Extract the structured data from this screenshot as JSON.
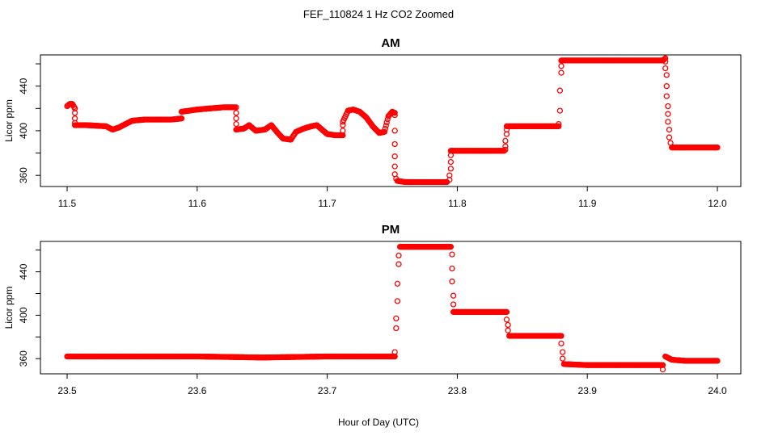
{
  "title": "FEF_110824  1 Hz CO2 Zoomed",
  "xlabel": "Hour of Day (UTC)",
  "colors": {
    "points": "#ff0000",
    "axes": "#000000",
    "background": "#ffffff"
  },
  "chart_data": [
    {
      "type": "scatter",
      "title": "AM",
      "ylabel": "Licor ppm",
      "xlim": [
        11.5,
        12.0
      ],
      "ylim": [
        350,
        468
      ],
      "xticks": [
        "11.5",
        "11.6",
        "11.7",
        "11.8",
        "11.9",
        "12.0"
      ],
      "yticks": [
        "360",
        "400",
        "440"
      ],
      "series_color": "#ff0000",
      "segments": [
        [
          [
            11.5,
            422
          ],
          [
            11.502,
            424
          ],
          [
            11.504,
            424
          ],
          [
            11.506,
            420
          ]
        ],
        [
          [
            11.506,
            405
          ],
          [
            11.515,
            405
          ],
          [
            11.53,
            404
          ],
          [
            11.535,
            401
          ],
          [
            11.54,
            403
          ],
          [
            11.545,
            406
          ],
          [
            11.55,
            409
          ],
          [
            11.56,
            410
          ],
          [
            11.57,
            410
          ],
          [
            11.58,
            410
          ],
          [
            11.588,
            411
          ]
        ],
        [
          [
            11.588,
            417
          ],
          [
            11.6,
            419
          ],
          [
            11.61,
            420
          ],
          [
            11.62,
            421
          ],
          [
            11.629,
            421
          ]
        ],
        [
          [
            11.63,
            401
          ],
          [
            11.636,
            402
          ],
          [
            11.64,
            405
          ],
          [
            11.645,
            400
          ],
          [
            11.652,
            401
          ],
          [
            11.657,
            405
          ],
          [
            11.662,
            398
          ],
          [
            11.666,
            393
          ],
          [
            11.672,
            392
          ],
          [
            11.676,
            399
          ],
          [
            11.682,
            402
          ],
          [
            11.688,
            404
          ],
          [
            11.692,
            405
          ],
          [
            11.696,
            401
          ],
          [
            11.7,
            397
          ],
          [
            11.706,
            396
          ],
          [
            11.712,
            396
          ]
        ],
        [
          [
            11.712,
            408
          ],
          [
            11.716,
            418
          ],
          [
            11.72,
            419
          ],
          [
            11.725,
            417
          ],
          [
            11.73,
            412
          ],
          [
            11.735,
            404
          ],
          [
            11.74,
            398
          ],
          [
            11.744,
            399
          ],
          [
            11.747,
            413
          ],
          [
            11.75,
            417
          ],
          [
            11.752,
            416
          ]
        ],
        [
          [
            11.754,
            355
          ],
          [
            11.76,
            354
          ],
          [
            11.77,
            354
          ],
          [
            11.78,
            354
          ],
          [
            11.792,
            354
          ]
        ],
        [
          [
            11.795,
            382
          ],
          [
            11.805,
            382
          ],
          [
            11.815,
            382
          ],
          [
            11.825,
            382
          ],
          [
            11.836,
            382
          ]
        ],
        [
          [
            11.838,
            404
          ],
          [
            11.85,
            404
          ],
          [
            11.86,
            404
          ],
          [
            11.87,
            404
          ],
          [
            11.878,
            404
          ]
        ],
        [
          [
            11.88,
            463
          ],
          [
            11.895,
            463
          ],
          [
            11.91,
            463
          ],
          [
            11.925,
            463
          ],
          [
            11.94,
            463
          ],
          [
            11.958,
            463
          ],
          [
            11.96,
            465
          ]
        ],
        [
          [
            11.965,
            385
          ],
          [
            11.975,
            385
          ],
          [
            11.985,
            385
          ],
          [
            12.0,
            385
          ]
        ]
      ],
      "transitions": [
        [
          [
            11.506,
            420
          ],
          [
            11.506,
            416
          ],
          [
            11.506,
            411
          ],
          [
            11.506,
            407
          ]
        ],
        [
          [
            11.63,
            421
          ],
          [
            11.63,
            416
          ],
          [
            11.63,
            411
          ],
          [
            11.63,
            406
          ]
        ],
        [
          [
            11.712,
            400
          ],
          [
            11.712,
            405
          ]
        ],
        [
          [
            11.752,
            414
          ],
          [
            11.752,
            400
          ],
          [
            11.752,
            388
          ],
          [
            11.752,
            377
          ],
          [
            11.752,
            368
          ],
          [
            11.752,
            361
          ],
          [
            11.753,
            357
          ]
        ],
        [
          [
            11.794,
            356
          ],
          [
            11.794,
            360
          ],
          [
            11.795,
            366
          ],
          [
            11.795,
            372
          ],
          [
            11.795,
            378
          ]
        ],
        [
          [
            11.837,
            383
          ],
          [
            11.837,
            386
          ],
          [
            11.837,
            391
          ],
          [
            11.838,
            397
          ],
          [
            11.838,
            401
          ]
        ],
        [
          [
            11.878,
            406
          ],
          [
            11.879,
            418
          ],
          [
            11.879,
            436
          ],
          [
            11.88,
            452
          ],
          [
            11.88,
            458
          ]
        ],
        [
          [
            11.96,
            462
          ],
          [
            11.96,
            456
          ],
          [
            11.961,
            450
          ],
          [
            11.961,
            440
          ],
          [
            11.961,
            431
          ],
          [
            11.962,
            422
          ],
          [
            11.962,
            415
          ],
          [
            11.962,
            408
          ],
          [
            11.963,
            401
          ],
          [
            11.963,
            394
          ],
          [
            11.964,
            389
          ]
        ]
      ]
    },
    {
      "type": "scatter",
      "title": "PM",
      "ylabel": "Licor ppm",
      "xlim": [
        23.5,
        24.0
      ],
      "ylim": [
        346,
        468
      ],
      "xticks": [
        "23.5",
        "23.6",
        "23.7",
        "23.8",
        "23.9",
        "24.0"
      ],
      "yticks": [
        "360",
        "400",
        "440"
      ],
      "series_color": "#ff0000",
      "segments": [
        [
          [
            23.5,
            362
          ],
          [
            23.55,
            362
          ],
          [
            23.6,
            362
          ],
          [
            23.65,
            361
          ],
          [
            23.7,
            362
          ],
          [
            23.752,
            362
          ]
        ],
        [
          [
            23.756,
            463
          ],
          [
            23.77,
            463
          ],
          [
            23.78,
            463
          ],
          [
            23.795,
            463
          ]
        ],
        [
          [
            23.797,
            403
          ],
          [
            23.81,
            403
          ],
          [
            23.825,
            403
          ],
          [
            23.838,
            403
          ]
        ],
        [
          [
            23.84,
            381
          ],
          [
            23.855,
            381
          ],
          [
            23.87,
            381
          ],
          [
            23.88,
            381
          ]
        ],
        [
          [
            23.882,
            355
          ],
          [
            23.9,
            354
          ],
          [
            23.92,
            354
          ],
          [
            23.94,
            354
          ],
          [
            23.958,
            354
          ]
        ],
        [
          [
            23.96,
            362
          ],
          [
            23.965,
            359
          ],
          [
            23.975,
            358
          ],
          [
            23.985,
            358
          ],
          [
            24.0,
            358
          ]
        ]
      ],
      "transitions": [
        [
          [
            23.752,
            366
          ],
          [
            23.753,
            388
          ],
          [
            23.753,
            397
          ],
          [
            23.754,
            413
          ],
          [
            23.754,
            429
          ],
          [
            23.755,
            447
          ],
          [
            23.755,
            455
          ]
        ],
        [
          [
            23.796,
            456
          ],
          [
            23.796,
            443
          ],
          [
            23.796,
            431
          ],
          [
            23.797,
            418
          ],
          [
            23.797,
            410
          ]
        ],
        [
          [
            23.838,
            396
          ],
          [
            23.839,
            391
          ],
          [
            23.839,
            386
          ]
        ],
        [
          [
            23.88,
            374
          ],
          [
            23.881,
            366
          ],
          [
            23.881,
            360
          ]
        ],
        [
          [
            23.958,
            350
          ]
        ]
      ]
    }
  ]
}
